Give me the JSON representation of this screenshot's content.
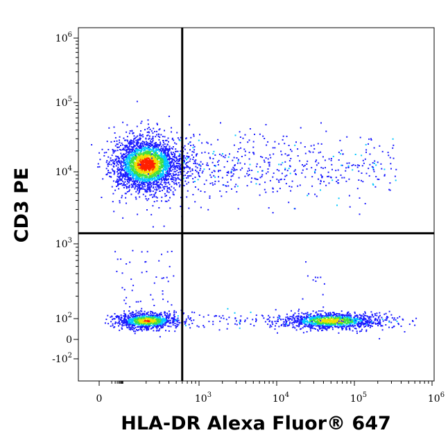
{
  "chart_data": {
    "type": "scatter",
    "plot_style": "flow cytometry density dot plot (pseudocolor: blue low → green/yellow → red high)",
    "xlabel": "HLA-DR Alexa Fluor® 647",
    "ylabel": "CD3 PE",
    "x_scale": "biexponential",
    "y_scale": "biexponential",
    "xlim": [
      -100,
      1000000
    ],
    "ylim": [
      -300,
      1000000
    ],
    "x_ticks": [
      {
        "label": "0",
        "value": 0
      },
      {
        "base": "10",
        "exp": "3",
        "value": 1000
      },
      {
        "base": "10",
        "exp": "4",
        "value": 10000
      },
      {
        "base": "10",
        "exp": "5",
        "value": 100000
      },
      {
        "base": "10",
        "exp": "6",
        "value": 1000000
      }
    ],
    "y_ticks": [
      {
        "label": "",
        "base": "-10",
        "exp": "2",
        "value": -100
      },
      {
        "label": "0",
        "value": 0
      },
      {
        "base": "10",
        "exp": "2",
        "value": 100
      },
      {
        "base": "10",
        "exp": "3",
        "value": 1000
      },
      {
        "base": "10",
        "exp": "4",
        "value": 10000
      },
      {
        "base": "10",
        "exp": "5",
        "value": 100000
      },
      {
        "base": "10",
        "exp": "6",
        "value": 1000000
      }
    ],
    "quadrant_gate": {
      "x": 600,
      "y": 1400
    },
    "populations": [
      {
        "name": "CD3+ HLA-DR-",
        "x_center": 200,
        "y_center": 13000,
        "density": "high"
      },
      {
        "name": "CD3+ HLA-DR+ tail",
        "x_range": [
          600,
          100000
        ],
        "y_center": 12000,
        "density": "low"
      },
      {
        "name": "CD3- HLA-DR-",
        "x_center": 200,
        "y_center": 70,
        "density": "medium"
      },
      {
        "name": "CD3- HLA-DR+",
        "x_center": 50000,
        "y_center": 70,
        "density": "medium"
      }
    ],
    "colors": {
      "low": "#1a1aff",
      "mid_low": "#00c8ff",
      "mid": "#40e040",
      "mid_high": "#f0e000",
      "high": "#ff2000"
    }
  }
}
